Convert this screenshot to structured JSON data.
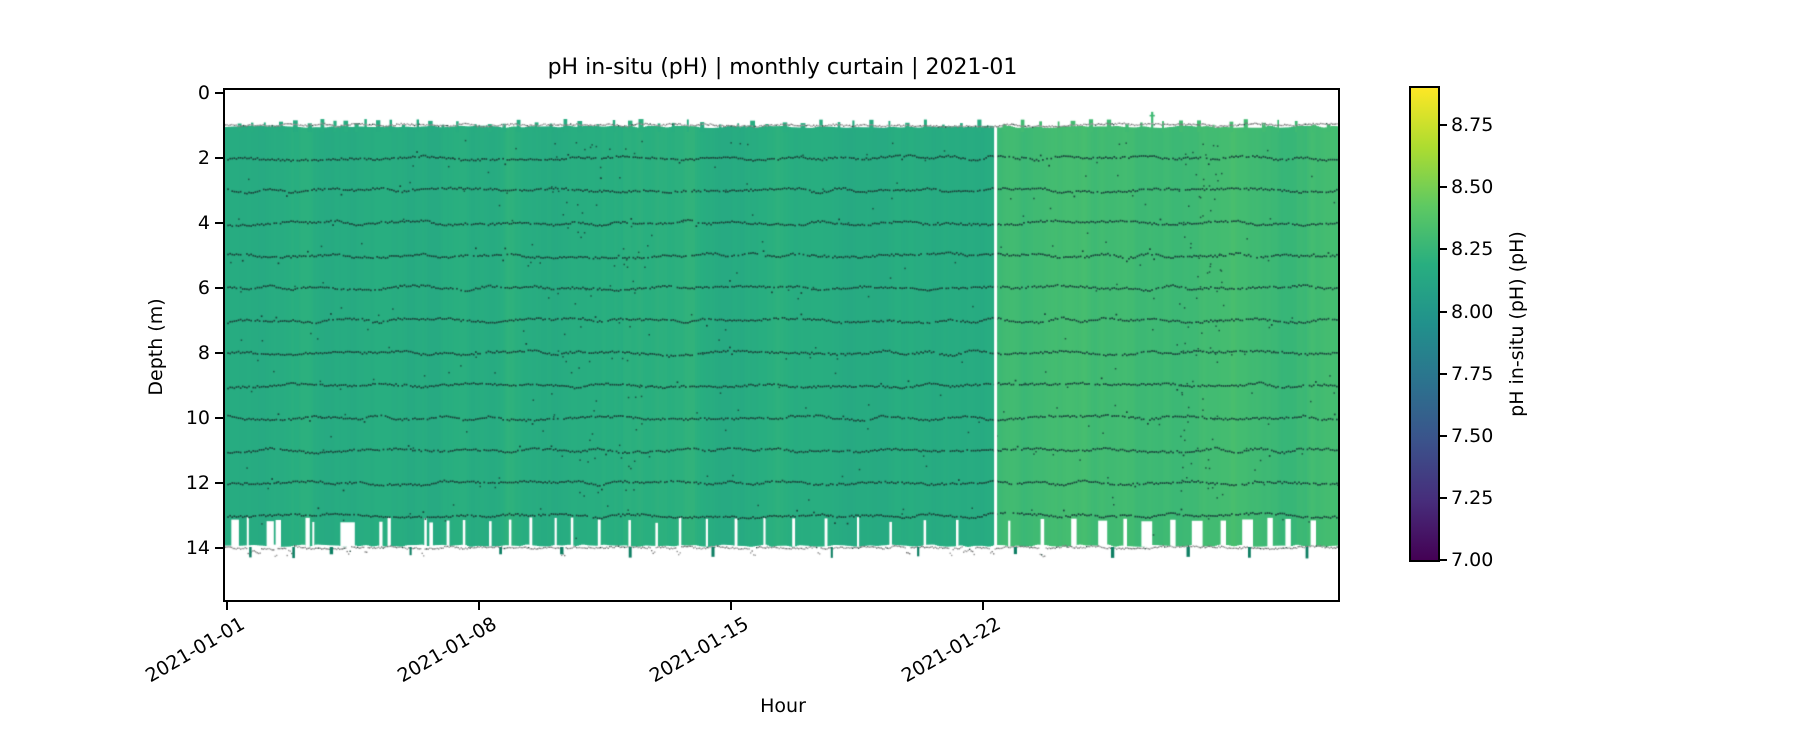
{
  "title": "pH in-situ (pH) | monthly curtain | 2021-01",
  "axes": {
    "xlabel": "Hour",
    "ylabel": "Depth (m)",
    "x_tick_labels": [
      "2021-01-01",
      "2021-01-08",
      "2021-01-15",
      "2021-01-22"
    ],
    "y_tick_labels": [
      "0",
      "2",
      "4",
      "6",
      "8",
      "10",
      "12",
      "14"
    ]
  },
  "colorbar": {
    "label": "pH in-situ (pH) (pH)",
    "tick_labels": [
      "8.75",
      "8.50",
      "8.25",
      "8.00",
      "7.75",
      "7.50",
      "7.25",
      "7.00"
    ],
    "tick_values": [
      8.75,
      8.5,
      8.25,
      8.0,
      7.75,
      7.5,
      7.25,
      7.0
    ],
    "vmin": 7.0,
    "vmax": 8.9,
    "colormap": "viridis",
    "stops": [
      [
        0,
        "#440154"
      ],
      [
        0.125,
        "#472d7b"
      ],
      [
        0.25,
        "#3b528b"
      ],
      [
        0.375,
        "#2c728e"
      ],
      [
        0.5,
        "#21918c"
      ],
      [
        0.625,
        "#28ae80"
      ],
      [
        0.75,
        "#5ec962"
      ],
      [
        0.875,
        "#addc30"
      ],
      [
        1,
        "#fde725"
      ]
    ]
  },
  "colors": {
    "background": "#ffffff",
    "spine": "#000000",
    "dot_dark": "#1c463d",
    "dot_gray": "#8d8d8d",
    "under_spike_green": "#0e7f63"
  },
  "chart_data": {
    "type": "heatmap",
    "title": "pH in-situ (pH) | monthly curtain | 2021-01",
    "xlabel": "Hour",
    "ylabel": "Depth (m)",
    "x_start": "2021-01-01",
    "x_end": "2021-02-01",
    "x_ticks": [
      "2021-01-01",
      "2021-01-08",
      "2021-01-15",
      "2021-01-22"
    ],
    "x_tick_days": [
      0,
      7,
      14,
      21
    ],
    "days_shown": 30.9,
    "ylim": [
      15.7,
      0
    ],
    "y_ticks": [
      0,
      2,
      4,
      6,
      8,
      10,
      12,
      14
    ],
    "value_label": "pH in-situ (pH) (pH)",
    "value_range": [
      7.0,
      8.9
    ],
    "observed_value_range_approx": [
      8.1,
      8.35
    ],
    "depth_extent_m": [
      1.0,
      13.95
    ],
    "surface_row_depth_m": 0.97,
    "bottom_row_depth_m": 13.97,
    "sensor_row_depths_m": [
      2,
      3,
      4,
      5,
      6,
      7,
      8,
      9,
      10,
      11,
      12,
      13
    ],
    "ph_mean_before_gap": 8.18,
    "ph_mean_after_gap": 8.3,
    "ph_daily_wiggle": [
      0.0,
      -0.01,
      0.0,
      0.01,
      -0.01,
      -0.02,
      0.0,
      0.01,
      0.0,
      -0.01,
      0.0,
      0.02,
      0.01,
      -0.01,
      0.0,
      0.01,
      0.0,
      -0.01,
      0.0,
      0.01,
      0.0,
      0.0,
      0.0,
      0.01,
      0.0,
      -0.01,
      0.0,
      0.01,
      0.0,
      -0.01,
      0.0
    ],
    "missing_data_line_day": 21.35,
    "bottom_dropout_band_m": [
      13.05,
      13.95
    ],
    "bottom_dropout_segments_days": [
      [
        0.12,
        0.33
      ],
      [
        0.55,
        0.6
      ],
      [
        1.1,
        1.3
      ],
      [
        1.35,
        1.5
      ],
      [
        2.18,
        2.3
      ],
      [
        2.37,
        2.42
      ],
      [
        3.15,
        3.55
      ],
      [
        4.23,
        4.32
      ],
      [
        4.46,
        4.55
      ],
      [
        5.48,
        5.55
      ],
      [
        5.62,
        5.72
      ],
      [
        6.1,
        6.18
      ],
      [
        6.55,
        6.62
      ],
      [
        7.28,
        7.35
      ],
      [
        7.83,
        7.9
      ],
      [
        8.4,
        8.48
      ],
      [
        9.1,
        9.16
      ],
      [
        9.55,
        9.62
      ],
      [
        10.3,
        10.38
      ],
      [
        11.15,
        11.22
      ],
      [
        11.9,
        11.97
      ],
      [
        12.55,
        12.62
      ],
      [
        13.3,
        13.36
      ],
      [
        14.1,
        14.18
      ],
      [
        14.9,
        14.96
      ],
      [
        15.7,
        15.78
      ],
      [
        16.6,
        16.68
      ],
      [
        17.5,
        17.56
      ],
      [
        18.4,
        18.47
      ],
      [
        19.35,
        19.42
      ],
      [
        20.25,
        20.32
      ],
      [
        21.7,
        21.76
      ],
      [
        22.6,
        22.7
      ],
      [
        23.45,
        23.6
      ],
      [
        24.2,
        24.45
      ],
      [
        24.9,
        25.0
      ],
      [
        25.4,
        25.7
      ],
      [
        26.2,
        26.35
      ],
      [
        26.8,
        27.1
      ],
      [
        27.6,
        27.75
      ],
      [
        28.2,
        28.5
      ],
      [
        28.9,
        29.05
      ],
      [
        29.4,
        29.55
      ],
      [
        30.1,
        30.25
      ]
    ],
    "surface_spike_days": [
      0.35,
      0.7,
      1.05,
      1.5,
      1.9,
      2.3,
      2.65,
      3.0,
      3.3,
      3.6,
      3.85,
      4.2,
      4.55,
      4.9,
      5.3,
      5.65,
      6.0,
      6.4,
      6.9,
      7.3,
      7.7,
      8.1,
      8.6,
      9.0,
      9.4,
      9.8,
      10.3,
      10.75,
      11.2,
      11.5,
      12.0,
      12.4,
      12.8,
      13.2,
      13.7,
      14.2,
      14.6,
      15.0,
      15.5,
      16.0,
      16.5,
      17.0,
      17.4,
      17.9,
      18.4,
      18.9,
      19.4,
      19.9,
      20.4,
      20.9,
      21.6,
      22.1,
      22.6,
      23.1,
      23.5,
      24.0,
      24.5,
      25.0,
      25.4,
      26.0,
      26.5,
      27.0,
      27.4,
      27.9,
      28.3,
      28.8,
      29.2,
      29.7,
      30.2,
      30.6
    ],
    "tall_surface_spikes": [
      [
        25.7,
        0.58
      ]
    ],
    "under_bottom_spike_days": [
      0.65,
      1.85,
      2.9,
      5.1,
      7.6,
      9.3,
      11.2,
      13.5,
      16.8,
      19.2,
      21.9,
      24.6,
      26.7,
      28.4,
      30.0
    ],
    "stray_dot_cluster_day_ranges": [
      [
        8.7,
        11.8
      ],
      [
        26.4,
        27.6
      ]
    ]
  }
}
